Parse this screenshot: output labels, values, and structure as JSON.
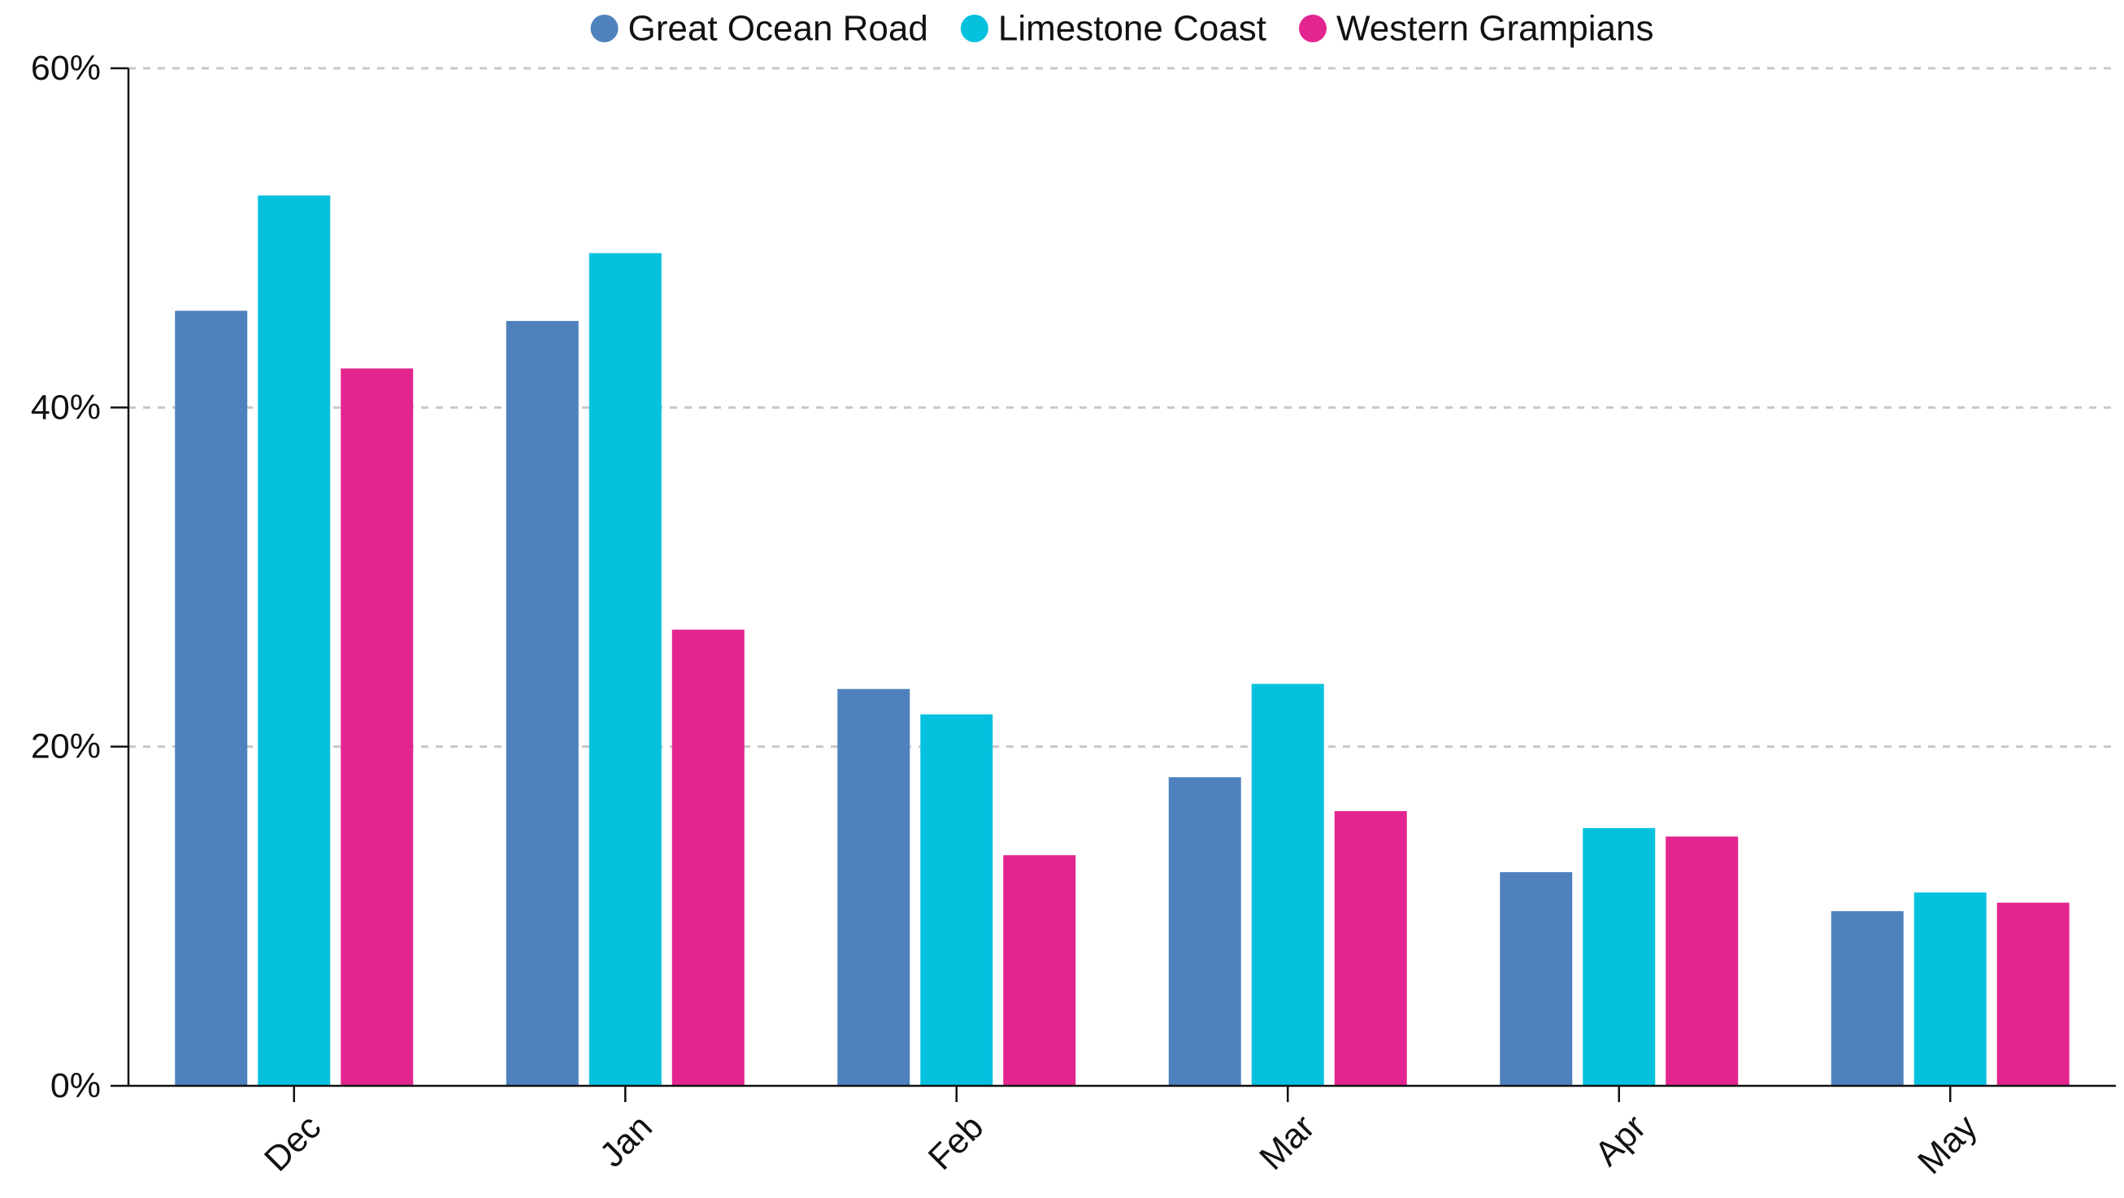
{
  "chart_data": {
    "type": "bar",
    "categories": [
      "Dec",
      "Jan",
      "Feb",
      "Mar",
      "Apr",
      "May"
    ],
    "series": [
      {
        "name": "Great Ocean Road",
        "color": "#4f81bd",
        "values": [
          45.7,
          45.1,
          23.4,
          18.2,
          12.6,
          10.3
        ]
      },
      {
        "name": "Limestone Coast",
        "color": "#06c1de",
        "values": [
          52.5,
          49.1,
          21.9,
          23.7,
          15.2,
          11.4
        ]
      },
      {
        "name": "Western Grampians",
        "color": "#e32590",
        "values": [
          42.3,
          26.9,
          13.6,
          16.2,
          14.7,
          10.8
        ]
      }
    ],
    "yticks": [
      0,
      20,
      40,
      60
    ],
    "ytick_labels": [
      "0%",
      "20%",
      "40%",
      "60%"
    ],
    "ylim": [
      0,
      60
    ],
    "grid": true,
    "legend_position": "top-center",
    "title": "",
    "xlabel": "",
    "ylabel": ""
  }
}
